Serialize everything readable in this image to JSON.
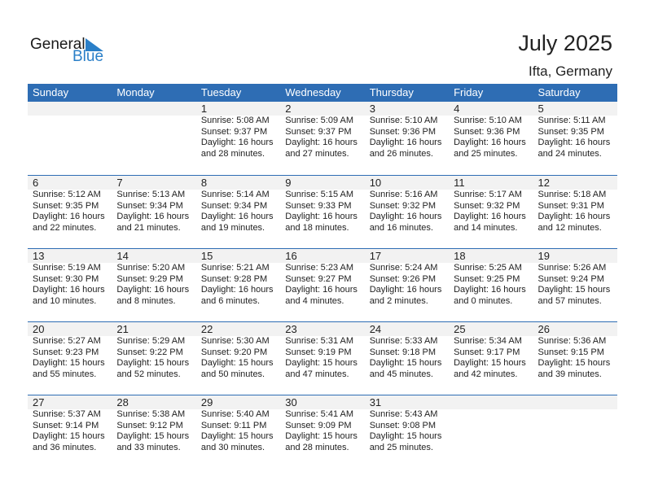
{
  "logo": {
    "text_general": "General",
    "text_blue": "Blue",
    "color": "#2a7fc8"
  },
  "title": "July 2025",
  "location": "Ifta, Germany",
  "header_color": "#2e6db4",
  "weekdays": [
    "Sunday",
    "Monday",
    "Tuesday",
    "Wednesday",
    "Thursday",
    "Friday",
    "Saturday"
  ],
  "weeks": [
    [
      null,
      null,
      {
        "day": "1",
        "sunrise": "Sunrise: 5:08 AM",
        "sunset": "Sunset: 9:37 PM",
        "daylight": "Daylight: 16 hours",
        "minutes": "and 28 minutes."
      },
      {
        "day": "2",
        "sunrise": "Sunrise: 5:09 AM",
        "sunset": "Sunset: 9:37 PM",
        "daylight": "Daylight: 16 hours",
        "minutes": "and 27 minutes."
      },
      {
        "day": "3",
        "sunrise": "Sunrise: 5:10 AM",
        "sunset": "Sunset: 9:36 PM",
        "daylight": "Daylight: 16 hours",
        "minutes": "and 26 minutes."
      },
      {
        "day": "4",
        "sunrise": "Sunrise: 5:10 AM",
        "sunset": "Sunset: 9:36 PM",
        "daylight": "Daylight: 16 hours",
        "minutes": "and 25 minutes."
      },
      {
        "day": "5",
        "sunrise": "Sunrise: 5:11 AM",
        "sunset": "Sunset: 9:35 PM",
        "daylight": "Daylight: 16 hours",
        "minutes": "and 24 minutes."
      }
    ],
    [
      {
        "day": "6",
        "sunrise": "Sunrise: 5:12 AM",
        "sunset": "Sunset: 9:35 PM",
        "daylight": "Daylight: 16 hours",
        "minutes": "and 22 minutes."
      },
      {
        "day": "7",
        "sunrise": "Sunrise: 5:13 AM",
        "sunset": "Sunset: 9:34 PM",
        "daylight": "Daylight: 16 hours",
        "minutes": "and 21 minutes."
      },
      {
        "day": "8",
        "sunrise": "Sunrise: 5:14 AM",
        "sunset": "Sunset: 9:34 PM",
        "daylight": "Daylight: 16 hours",
        "minutes": "and 19 minutes."
      },
      {
        "day": "9",
        "sunrise": "Sunrise: 5:15 AM",
        "sunset": "Sunset: 9:33 PM",
        "daylight": "Daylight: 16 hours",
        "minutes": "and 18 minutes."
      },
      {
        "day": "10",
        "sunrise": "Sunrise: 5:16 AM",
        "sunset": "Sunset: 9:32 PM",
        "daylight": "Daylight: 16 hours",
        "minutes": "and 16 minutes."
      },
      {
        "day": "11",
        "sunrise": "Sunrise: 5:17 AM",
        "sunset": "Sunset: 9:32 PM",
        "daylight": "Daylight: 16 hours",
        "minutes": "and 14 minutes."
      },
      {
        "day": "12",
        "sunrise": "Sunrise: 5:18 AM",
        "sunset": "Sunset: 9:31 PM",
        "daylight": "Daylight: 16 hours",
        "minutes": "and 12 minutes."
      }
    ],
    [
      {
        "day": "13",
        "sunrise": "Sunrise: 5:19 AM",
        "sunset": "Sunset: 9:30 PM",
        "daylight": "Daylight: 16 hours",
        "minutes": "and 10 minutes."
      },
      {
        "day": "14",
        "sunrise": "Sunrise: 5:20 AM",
        "sunset": "Sunset: 9:29 PM",
        "daylight": "Daylight: 16 hours",
        "minutes": "and 8 minutes."
      },
      {
        "day": "15",
        "sunrise": "Sunrise: 5:21 AM",
        "sunset": "Sunset: 9:28 PM",
        "daylight": "Daylight: 16 hours",
        "minutes": "and 6 minutes."
      },
      {
        "day": "16",
        "sunrise": "Sunrise: 5:23 AM",
        "sunset": "Sunset: 9:27 PM",
        "daylight": "Daylight: 16 hours",
        "minutes": "and 4 minutes."
      },
      {
        "day": "17",
        "sunrise": "Sunrise: 5:24 AM",
        "sunset": "Sunset: 9:26 PM",
        "daylight": "Daylight: 16 hours",
        "minutes": "and 2 minutes."
      },
      {
        "day": "18",
        "sunrise": "Sunrise: 5:25 AM",
        "sunset": "Sunset: 9:25 PM",
        "daylight": "Daylight: 16 hours",
        "minutes": "and 0 minutes."
      },
      {
        "day": "19",
        "sunrise": "Sunrise: 5:26 AM",
        "sunset": "Sunset: 9:24 PM",
        "daylight": "Daylight: 15 hours",
        "minutes": "and 57 minutes."
      }
    ],
    [
      {
        "day": "20",
        "sunrise": "Sunrise: 5:27 AM",
        "sunset": "Sunset: 9:23 PM",
        "daylight": "Daylight: 15 hours",
        "minutes": "and 55 minutes."
      },
      {
        "day": "21",
        "sunrise": "Sunrise: 5:29 AM",
        "sunset": "Sunset: 9:22 PM",
        "daylight": "Daylight: 15 hours",
        "minutes": "and 52 minutes."
      },
      {
        "day": "22",
        "sunrise": "Sunrise: 5:30 AM",
        "sunset": "Sunset: 9:20 PM",
        "daylight": "Daylight: 15 hours",
        "minutes": "and 50 minutes."
      },
      {
        "day": "23",
        "sunrise": "Sunrise: 5:31 AM",
        "sunset": "Sunset: 9:19 PM",
        "daylight": "Daylight: 15 hours",
        "minutes": "and 47 minutes."
      },
      {
        "day": "24",
        "sunrise": "Sunrise: 5:33 AM",
        "sunset": "Sunset: 9:18 PM",
        "daylight": "Daylight: 15 hours",
        "minutes": "and 45 minutes."
      },
      {
        "day": "25",
        "sunrise": "Sunrise: 5:34 AM",
        "sunset": "Sunset: 9:17 PM",
        "daylight": "Daylight: 15 hours",
        "minutes": "and 42 minutes."
      },
      {
        "day": "26",
        "sunrise": "Sunrise: 5:36 AM",
        "sunset": "Sunset: 9:15 PM",
        "daylight": "Daylight: 15 hours",
        "minutes": "and 39 minutes."
      }
    ],
    [
      {
        "day": "27",
        "sunrise": "Sunrise: 5:37 AM",
        "sunset": "Sunset: 9:14 PM",
        "daylight": "Daylight: 15 hours",
        "minutes": "and 36 minutes."
      },
      {
        "day": "28",
        "sunrise": "Sunrise: 5:38 AM",
        "sunset": "Sunset: 9:12 PM",
        "daylight": "Daylight: 15 hours",
        "minutes": "and 33 minutes."
      },
      {
        "day": "29",
        "sunrise": "Sunrise: 5:40 AM",
        "sunset": "Sunset: 9:11 PM",
        "daylight": "Daylight: 15 hours",
        "minutes": "and 30 minutes."
      },
      {
        "day": "30",
        "sunrise": "Sunrise: 5:41 AM",
        "sunset": "Sunset: 9:09 PM",
        "daylight": "Daylight: 15 hours",
        "minutes": "and 28 minutes."
      },
      {
        "day": "31",
        "sunrise": "Sunrise: 5:43 AM",
        "sunset": "Sunset: 9:08 PM",
        "daylight": "Daylight: 15 hours",
        "minutes": "and 25 minutes."
      },
      null,
      null
    ]
  ]
}
